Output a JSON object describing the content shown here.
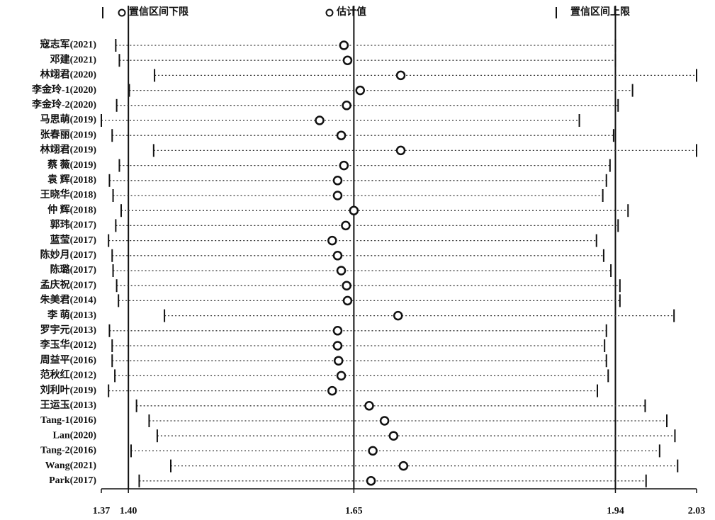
{
  "chart_data": {
    "type": "forest",
    "categories": [
      "寇志军(2021)",
      "邓建(2021)",
      "林翊君(2020)",
      "李金玲-1(2020)",
      "李金玲-2(2020)",
      "马思萌(2019)",
      "张春丽(2019)",
      "林翊君(2019)",
      "蔡 薇(2019)",
      "袁 辉(2018)",
      "王晓华(2018)",
      "仲 辉(2018)",
      "郭玮(2017)",
      "蓝莹(2017)",
      "陈妙月(2017)",
      "陈璐(2017)",
      "孟庆祝(2017)",
      "朱美君(2014)",
      "李 萌(2013)",
      "罗宇元(2013)",
      "李玉华(2012)",
      "周益平(2016)",
      "范秋红(2012)",
      "刘利叶(2019)",
      "王运玉(2013)",
      "Tang-1(2016)",
      "Lan(2020)",
      "Tang-2(2016)",
      "Wang(2021)",
      "Park(2017)"
    ],
    "series": [
      {
        "name": "置信区间下限",
        "color": "#111111",
        "values": [
          1.386,
          1.39,
          1.429,
          1.401,
          1.387,
          1.37,
          1.382,
          1.428,
          1.39,
          1.379,
          1.383,
          1.392,
          1.386,
          1.378,
          1.382,
          1.383,
          1.387,
          1.389,
          1.44,
          1.379,
          1.382,
          1.382,
          1.385,
          1.378,
          1.409,
          1.423,
          1.432,
          1.403,
          1.447,
          1.412
        ]
      },
      {
        "name": "估计值",
        "color": "#111111",
        "values": [
          1.639,
          1.643,
          1.702,
          1.657,
          1.642,
          1.612,
          1.636,
          1.702,
          1.639,
          1.632,
          1.632,
          1.65,
          1.641,
          1.626,
          1.632,
          1.636,
          1.642,
          1.643,
          1.699,
          1.632,
          1.632,
          1.633,
          1.636,
          1.626,
          1.667,
          1.684,
          1.694,
          1.671,
          1.705,
          1.669
        ]
      },
      {
        "name": "置信区间上限",
        "color": "#111111",
        "values": [
          1.94,
          1.94,
          2.03,
          1.959,
          1.943,
          1.9,
          1.938,
          2.03,
          1.934,
          1.93,
          1.926,
          1.954,
          1.943,
          1.919,
          1.927,
          1.935,
          1.945,
          1.945,
          2.005,
          1.93,
          1.928,
          1.93,
          1.932,
          1.92,
          1.973,
          1.997,
          2.006,
          1.989,
          2.009,
          1.974
        ]
      }
    ],
    "xlim": [
      1.37,
      2.03
    ],
    "xticks": [
      1.37,
      {
        "value": 1.4,
        "label": "1.40"
      },
      1.65,
      1.94,
      2.03
    ],
    "reference_lines": [
      1.4,
      1.65,
      1.94
    ]
  }
}
